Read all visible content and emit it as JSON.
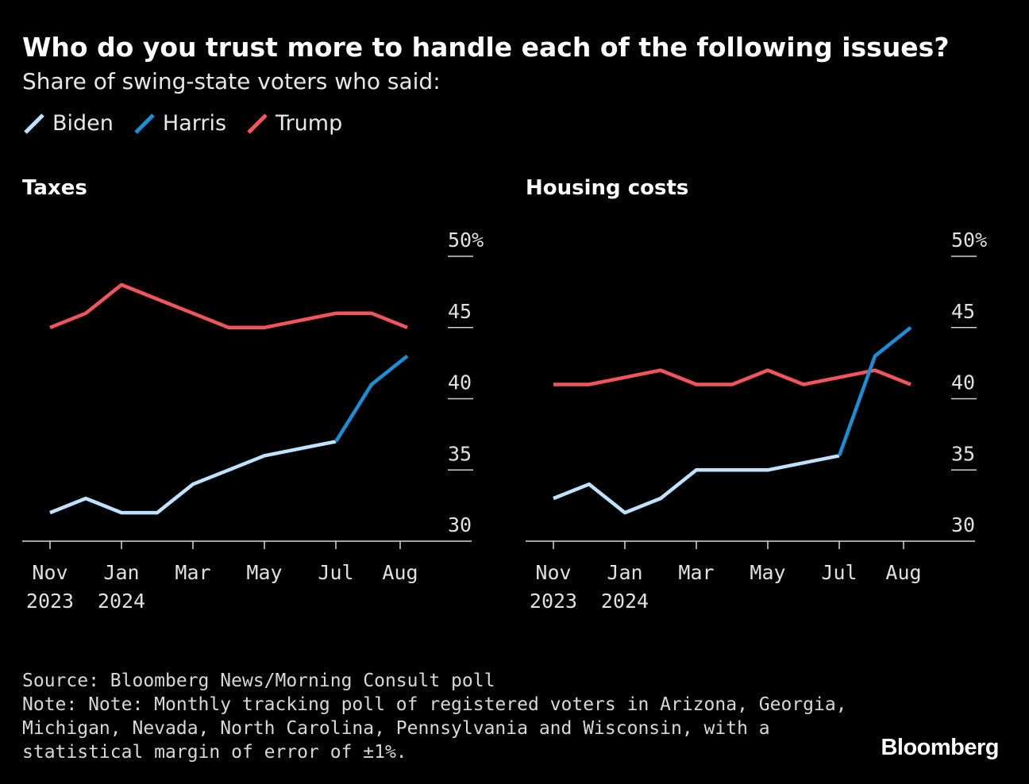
{
  "header": {
    "title": "Who do you trust more to handle each of the following issues?",
    "subtitle": "Share of swing-state voters who said:"
  },
  "legend": [
    {
      "name": "Biden",
      "color": "#bfe3ff"
    },
    {
      "name": "Harris",
      "color": "#1a8fd6"
    },
    {
      "name": "Trump",
      "color": "#f2545b"
    }
  ],
  "footer": {
    "source": "Source: Bloomberg News/Morning Consult poll",
    "note": "Note: Note: Monthly tracking poll of registered voters in Arizona, Georgia, Michigan, Nevada, North Carolina, Pennsylvania and Wisconsin, with a statistical margin of error of ±1%.",
    "brand": "Bloomberg"
  },
  "chart_data": [
    {
      "type": "line",
      "title": "Taxes",
      "ylim": [
        30,
        50
      ],
      "yticks": [
        30,
        35,
        40,
        45,
        50
      ],
      "ytick_labels": [
        "30",
        "35",
        "40",
        "45",
        "50%"
      ],
      "xlim": [
        0,
        10
      ],
      "xticks": [
        {
          "x": 0,
          "label": "Nov",
          "label2": "2023"
        },
        {
          "x": 2,
          "label": "Jan",
          "label2": "2024"
        },
        {
          "x": 4,
          "label": "Mar",
          "label2": ""
        },
        {
          "x": 6,
          "label": "May",
          "label2": ""
        },
        {
          "x": 8,
          "label": "Jul",
          "label2": ""
        },
        {
          "x": 9.8,
          "label": "Aug",
          "label2": ""
        }
      ],
      "series": [
        {
          "name": "Trump",
          "color": "#f2545b",
          "x": [
            0,
            1,
            2,
            3,
            4,
            5,
            6,
            7,
            8,
            9,
            10
          ],
          "y": [
            45,
            46,
            48,
            47,
            46,
            45,
            45,
            45.5,
            46,
            46,
            45
          ]
        },
        {
          "name": "Biden",
          "color": "#bfe3ff",
          "x": [
            0,
            1,
            2,
            3,
            4,
            5,
            6,
            7,
            8
          ],
          "y": [
            32,
            33,
            32,
            32,
            34,
            35,
            36,
            36.5,
            37
          ]
        },
        {
          "name": "Harris",
          "color": "#1a8fd6",
          "x": [
            8,
            9,
            10
          ],
          "y": [
            37,
            41,
            43
          ]
        }
      ]
    },
    {
      "type": "line",
      "title": "Housing costs",
      "ylim": [
        30,
        50
      ],
      "yticks": [
        30,
        35,
        40,
        45,
        50
      ],
      "ytick_labels": [
        "30",
        "35",
        "40",
        "45",
        "50%"
      ],
      "xlim": [
        0,
        10
      ],
      "xticks": [
        {
          "x": 0,
          "label": "Nov",
          "label2": "2023"
        },
        {
          "x": 2,
          "label": "Jan",
          "label2": "2024"
        },
        {
          "x": 4,
          "label": "Mar",
          "label2": ""
        },
        {
          "x": 6,
          "label": "May",
          "label2": ""
        },
        {
          "x": 8,
          "label": "Jul",
          "label2": ""
        },
        {
          "x": 9.8,
          "label": "Aug",
          "label2": ""
        }
      ],
      "series": [
        {
          "name": "Trump",
          "color": "#f2545b",
          "x": [
            0,
            1,
            2,
            3,
            4,
            5,
            6,
            7,
            8,
            9,
            10
          ],
          "y": [
            41,
            41,
            41.5,
            42,
            41,
            41,
            42,
            41,
            41.5,
            42,
            41
          ]
        },
        {
          "name": "Biden",
          "color": "#bfe3ff",
          "x": [
            0,
            1,
            2,
            3,
            4,
            5,
            6,
            7,
            8
          ],
          "y": [
            33,
            34,
            32,
            33,
            35,
            35,
            35,
            35.5,
            36
          ]
        },
        {
          "name": "Harris",
          "color": "#1a8fd6",
          "x": [
            8,
            9,
            10
          ],
          "y": [
            36,
            43,
            45
          ]
        }
      ]
    }
  ]
}
